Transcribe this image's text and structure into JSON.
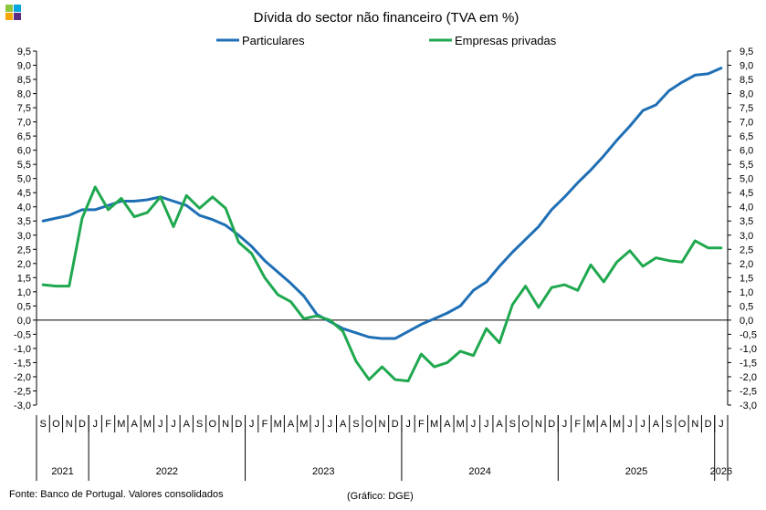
{
  "logo": {
    "colors": [
      "#8CC63F",
      "#00A6E0",
      "#F7A600",
      "#5B2C83"
    ]
  },
  "footer": {
    "source": "Fonte: Banco de Portugal. Valores consolidados",
    "credit": "(Gráfico: DGE)"
  },
  "chart_data": {
    "type": "line",
    "title": "Dívida do sector não financeiro (TVA em %)",
    "ylim": [
      -3.0,
      9.5
    ],
    "ystep": 0.5,
    "yaxis_right": true,
    "decimal_separator": ",",
    "legend_position": "top-center",
    "grid": false,
    "months": [
      "S",
      "O",
      "N",
      "D",
      "J",
      "F",
      "M",
      "A",
      "M",
      "J",
      "J",
      "A",
      "S",
      "O",
      "N",
      "D",
      "J",
      "F",
      "M",
      "A",
      "M",
      "J",
      "J",
      "A",
      "S",
      "O",
      "N",
      "D",
      "J",
      "F",
      "M",
      "A",
      "M",
      "J",
      "J",
      "A",
      "S",
      "O",
      "N",
      "D",
      "J",
      "F",
      "M",
      "A",
      "M",
      "J",
      "J",
      "A",
      "S",
      "O",
      "N",
      "D",
      "J"
    ],
    "years": [
      {
        "label": "2021",
        "start": 0,
        "end": 3
      },
      {
        "label": "2022",
        "start": 4,
        "end": 15
      },
      {
        "label": "2023",
        "start": 16,
        "end": 27
      },
      {
        "label": "2024",
        "start": 28,
        "end": 39
      },
      {
        "label": "2025",
        "start": 40,
        "end": 51
      },
      {
        "label": "2026",
        "start": 52,
        "end": 52
      }
    ],
    "series": [
      {
        "name": "Particulares",
        "color": "#1F6FB5",
        "values": [
          3.5,
          3.6,
          3.7,
          3.9,
          3.9,
          4.05,
          4.2,
          4.2,
          4.25,
          4.35,
          4.2,
          4.05,
          3.7,
          3.55,
          3.35,
          3.0,
          2.6,
          2.1,
          1.7,
          1.3,
          0.85,
          0.2,
          -0.05,
          -0.3,
          -0.45,
          -0.6,
          -0.65,
          -0.65,
          -0.4,
          -0.15,
          0.05,
          0.25,
          0.5,
          1.05,
          1.35,
          1.9,
          2.4,
          2.85,
          3.3,
          3.9,
          4.35,
          4.85,
          5.3,
          5.8,
          6.35,
          6.85,
          7.4,
          7.6,
          8.1,
          8.4,
          8.65,
          8.7,
          8.9
        ]
      },
      {
        "name": "Empresas privadas",
        "color": "#1FA84F",
        "values": [
          1.25,
          1.2,
          1.2,
          3.6,
          4.7,
          3.9,
          4.3,
          3.65,
          3.8,
          4.35,
          3.3,
          4.4,
          3.95,
          4.35,
          3.95,
          2.75,
          2.35,
          1.5,
          0.9,
          0.65,
          0.05,
          0.15,
          0.0,
          -0.4,
          -1.45,
          -2.1,
          -1.65,
          -2.1,
          -2.15,
          -1.2,
          -1.65,
          -1.5,
          -1.1,
          -1.25,
          -0.3,
          -0.8,
          0.55,
          1.2,
          0.45,
          1.15,
          1.25,
          1.05,
          1.95,
          1.35,
          2.05,
          2.45,
          1.9,
          2.2,
          2.1,
          2.05,
          2.8,
          2.55,
          2.55
        ]
      }
    ]
  }
}
